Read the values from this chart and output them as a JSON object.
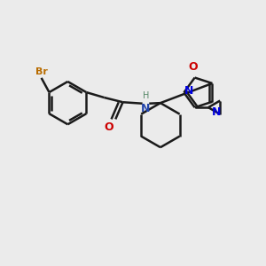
{
  "bg_color": "#ebebeb",
  "bond_color": "#1a1a1a",
  "bond_width": 1.8,
  "figsize": [
    3.0,
    3.0
  ],
  "dpi": 100,
  "xlim": [
    0,
    10
  ],
  "ylim": [
    0,
    10
  ]
}
